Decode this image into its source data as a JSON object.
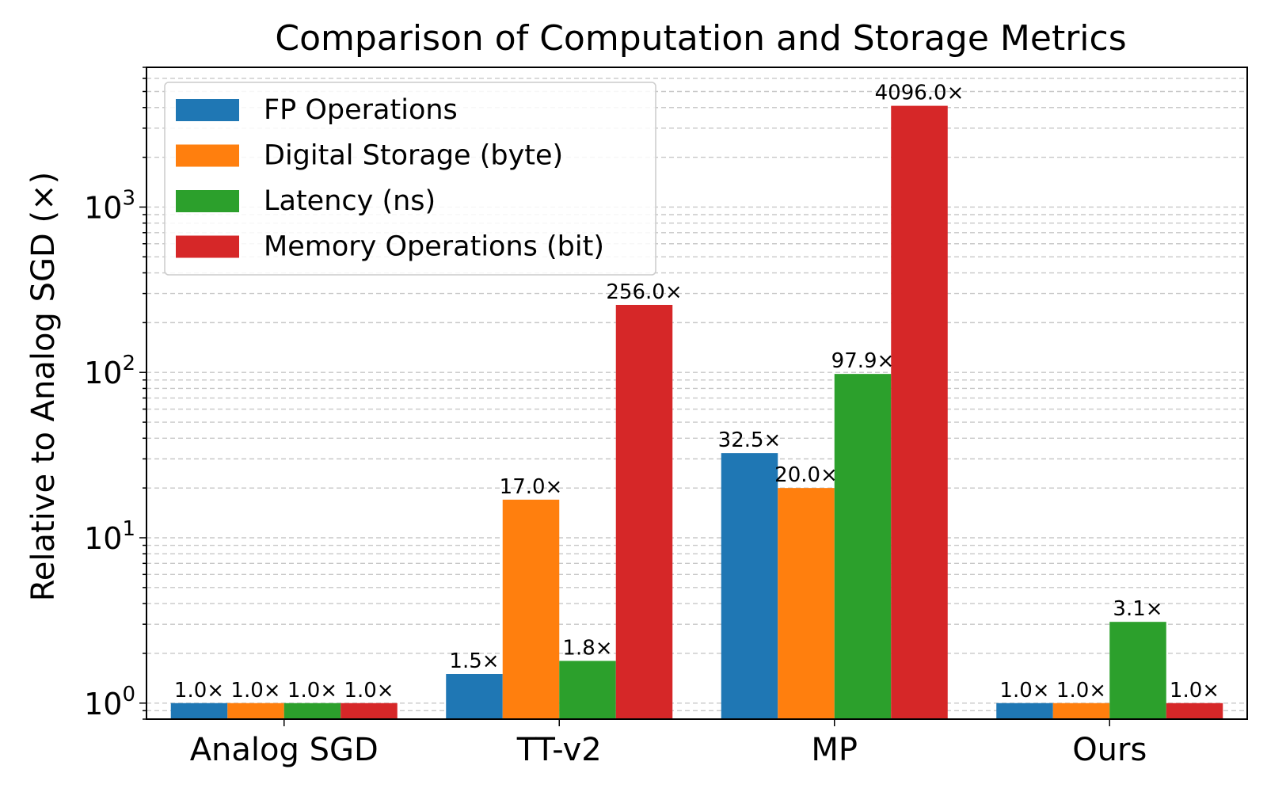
{
  "chart_data": {
    "type": "bar",
    "title": "Comparison of Computation and Storage Metrics",
    "xlabel": "",
    "ylabel": "Relative to Analog SGD (×)",
    "yscale": "log",
    "ylim": [
      0.8,
      7000
    ],
    "grid": "y-major-and-minor-dashed",
    "legend_position": "top-left",
    "categories": [
      "Analog SGD",
      "TT-v2",
      "MP",
      "Ours"
    ],
    "yticks": [
      {
        "value": 1,
        "base": "10",
        "exp": "0"
      },
      {
        "value": 10,
        "base": "10",
        "exp": "1"
      },
      {
        "value": 100,
        "base": "10",
        "exp": "2"
      },
      {
        "value": 1000,
        "base": "10",
        "exp": "3"
      }
    ],
    "series": [
      {
        "name": "FP Operations",
        "color": "#1f77b4",
        "values": [
          1.0,
          1.5,
          32.5,
          1.0
        ],
        "labels": [
          "1.0×",
          "1.5×",
          "32.5×",
          "1.0×"
        ]
      },
      {
        "name": "Digital Storage (byte)",
        "color": "#ff7f0e",
        "values": [
          1.0,
          17.0,
          20.0,
          1.0
        ],
        "labels": [
          "1.0×",
          "17.0×",
          "20.0×",
          "1.0×"
        ]
      },
      {
        "name": "Latency (ns)",
        "color": "#2ca02c",
        "values": [
          1.0,
          1.8,
          97.9,
          3.1
        ],
        "labels": [
          "1.0×",
          "1.8×",
          "97.9×",
          "3.1×"
        ]
      },
      {
        "name": "Memory Operations (bit)",
        "color": "#d62728",
        "values": [
          1.0,
          256.0,
          4096.0,
          1.0
        ],
        "labels": [
          "1.0×",
          "256.0×",
          "4096.0×",
          "1.0×"
        ]
      }
    ]
  }
}
